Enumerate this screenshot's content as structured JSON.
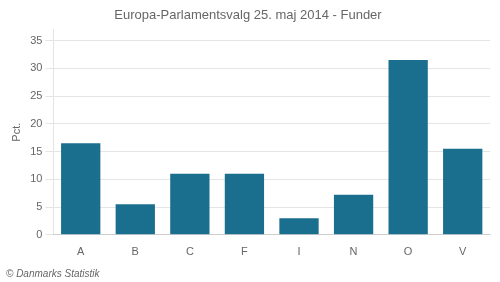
{
  "chart_data": {
    "type": "bar",
    "title": "Europa-Parlamentsvalg 25. maj 2014 - Funder",
    "ylabel": "Pct.",
    "annotations": [
      "© Danmarks Statistik"
    ],
    "categories": [
      "A",
      "B",
      "C",
      "F",
      "I",
      "N",
      "O",
      "V"
    ],
    "values": [
      16.5,
      5.5,
      11.0,
      11.0,
      3.0,
      7.2,
      31.5,
      15.5
    ],
    "color": "#1a6e8e",
    "ylim": [
      0,
      37
    ],
    "yticks": [
      0,
      5,
      10,
      15,
      20,
      25,
      30,
      35
    ],
    "grid": true
  }
}
